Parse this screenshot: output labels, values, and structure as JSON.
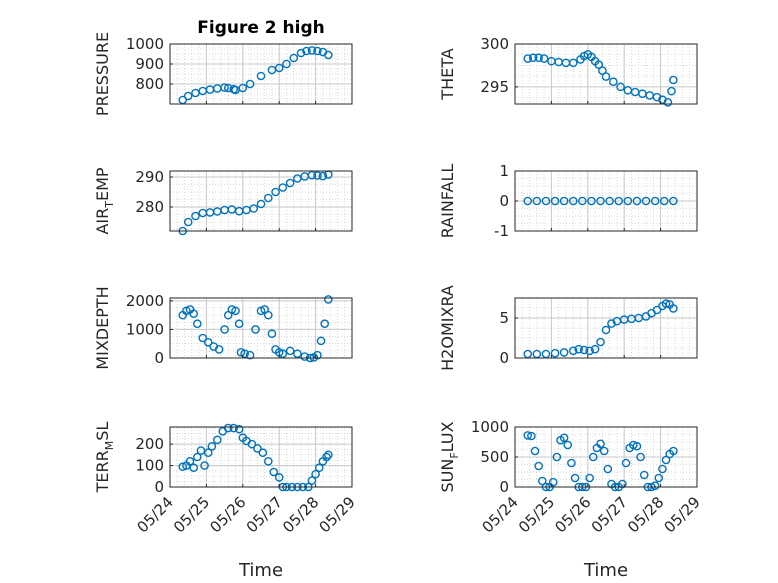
{
  "figure_title": "Figure 2 high",
  "x_axis_label": "Time",
  "x_tick_labels": [
    "05/24",
    "05/25",
    "05/26",
    "05/27",
    "05/28",
    "05/29"
  ],
  "colors": {
    "marker": "#0072bd",
    "grid": "#d0d0d0",
    "axis": "#262626"
  },
  "chart_data": [
    {
      "id": "pressure",
      "type": "scatter",
      "title": "Figure 2 high",
      "ylabel": "PRESSURE",
      "xlabel": "",
      "xlim": [
        0,
        5
      ],
      "ylim": [
        700,
        1000
      ],
      "yticks": [
        800,
        900,
        1000
      ],
      "grid": true,
      "x": [
        0.35,
        0.5,
        0.7,
        0.9,
        1.1,
        1.3,
        1.5,
        1.6,
        1.75,
        1.8,
        2.0,
        2.2,
        2.5,
        2.8,
        3.0,
        3.2,
        3.4,
        3.6,
        3.75,
        3.9,
        4.05,
        4.2,
        4.35
      ],
      "y": [
        720,
        740,
        755,
        765,
        772,
        778,
        782,
        780,
        774,
        770,
        780,
        800,
        840,
        870,
        880,
        900,
        930,
        955,
        965,
        968,
        965,
        960,
        945
      ]
    },
    {
      "id": "theta",
      "type": "scatter",
      "title": "",
      "ylabel": "THETA",
      "xlabel": "",
      "xlim": [
        0,
        5
      ],
      "ylim": [
        293,
        300
      ],
      "yticks": [
        295,
        300
      ],
      "grid": true,
      "x": [
        0.35,
        0.5,
        0.65,
        0.8,
        1.0,
        1.2,
        1.4,
        1.6,
        1.8,
        1.9,
        2.0,
        2.1,
        2.2,
        2.3,
        2.4,
        2.5,
        2.7,
        2.9,
        3.1,
        3.3,
        3.5,
        3.7,
        3.9,
        4.05,
        4.2,
        4.3,
        4.35
      ],
      "y": [
        298.3,
        298.4,
        298.4,
        298.3,
        298.0,
        297.9,
        297.8,
        297.8,
        298.2,
        298.6,
        298.8,
        298.5,
        298.0,
        297.6,
        296.9,
        296.2,
        295.6,
        295.0,
        294.6,
        294.4,
        294.2,
        294.0,
        293.8,
        293.5,
        293.2,
        294.5,
        295.8
      ]
    },
    {
      "id": "air_temp",
      "type": "scatter",
      "title": "",
      "ylabel": "AIR_TEMP",
      "xlabel": "",
      "xlim": [
        0,
        5
      ],
      "ylim": [
        272,
        292
      ],
      "yticks": [
        280,
        290
      ],
      "grid": true,
      "x": [
        0.35,
        0.5,
        0.7,
        0.9,
        1.1,
        1.3,
        1.5,
        1.7,
        1.9,
        2.1,
        2.3,
        2.5,
        2.7,
        2.9,
        3.1,
        3.3,
        3.5,
        3.7,
        3.9,
        4.05,
        4.2,
        4.35
      ],
      "y": [
        272,
        275,
        277,
        278,
        278.2,
        278.5,
        279,
        279.2,
        278.6,
        279,
        279.5,
        281,
        283,
        285,
        286.5,
        288,
        289.5,
        290.2,
        290.6,
        290.5,
        290.3,
        290.8
      ]
    },
    {
      "id": "rainfall",
      "type": "scatter",
      "title": "",
      "ylabel": "RAINFALL",
      "xlabel": "",
      "xlim": [
        0,
        5
      ],
      "ylim": [
        -1,
        1
      ],
      "yticks": [
        -1,
        0,
        1
      ],
      "grid": true,
      "x": [
        0.35,
        0.6,
        0.85,
        1.1,
        1.35,
        1.6,
        1.85,
        2.1,
        2.35,
        2.6,
        2.85,
        3.1,
        3.35,
        3.6,
        3.85,
        4.1,
        4.35
      ],
      "y": [
        0,
        0,
        0,
        0,
        0,
        0,
        0,
        0,
        0,
        0,
        0,
        0,
        0,
        0,
        0,
        0,
        0
      ]
    },
    {
      "id": "mixdepth",
      "type": "scatter",
      "title": "",
      "ylabel": "MIXDEPTH",
      "xlabel": "",
      "xlim": [
        0,
        5
      ],
      "ylim": [
        0,
        2100
      ],
      "yticks": [
        0,
        1000,
        2000
      ],
      "grid": true,
      "x": [
        0.35,
        0.45,
        0.55,
        0.65,
        0.75,
        0.9,
        1.05,
        1.2,
        1.35,
        1.5,
        1.6,
        1.7,
        1.8,
        1.9,
        1.95,
        2.05,
        2.2,
        2.35,
        2.5,
        2.6,
        2.7,
        2.8,
        2.9,
        3.0,
        3.1,
        3.3,
        3.5,
        3.7,
        3.85,
        3.95,
        4.05,
        4.15,
        4.25,
        4.35
      ],
      "y": [
        1500,
        1650,
        1700,
        1550,
        1200,
        700,
        550,
        400,
        300,
        1000,
        1500,
        1700,
        1650,
        1200,
        200,
        150,
        100,
        1000,
        1650,
        1700,
        1500,
        850,
        300,
        200,
        150,
        250,
        150,
        50,
        0,
        20,
        100,
        600,
        1200,
        2050
      ]
    },
    {
      "id": "h2omixra",
      "type": "scatter",
      "title": "",
      "ylabel": "H2OMIXRA",
      "xlabel": "",
      "xlim": [
        0,
        5
      ],
      "ylim": [
        0,
        7.5
      ],
      "yticks": [
        0,
        5
      ],
      "grid": true,
      "x": [
        0.35,
        0.6,
        0.85,
        1.1,
        1.35,
        1.6,
        1.75,
        1.9,
        2.05,
        2.2,
        2.35,
        2.5,
        2.65,
        2.8,
        3.0,
        3.2,
        3.4,
        3.6,
        3.75,
        3.9,
        4.05,
        4.15,
        4.25,
        4.35
      ],
      "y": [
        0.5,
        0.5,
        0.5,
        0.6,
        0.7,
        0.9,
        1.1,
        1.0,
        0.9,
        1.1,
        2.0,
        3.5,
        4.3,
        4.6,
        4.8,
        4.9,
        5.0,
        5.2,
        5.6,
        6.0,
        6.5,
        6.8,
        6.7,
        6.2
      ]
    },
    {
      "id": "terr_msl",
      "type": "scatter",
      "title": "",
      "ylabel": "TERR_MSL",
      "xlabel": "",
      "xlim": [
        0,
        5
      ],
      "ylim": [
        0,
        280
      ],
      "yticks": [
        0,
        100,
        200
      ],
      "grid": true,
      "x": [
        0.35,
        0.45,
        0.55,
        0.65,
        0.75,
        0.85,
        0.95,
        1.05,
        1.15,
        1.3,
        1.45,
        1.6,
        1.75,
        1.9,
        2.0,
        2.1,
        2.25,
        2.4,
        2.55,
        2.7,
        2.85,
        3.0,
        3.1,
        3.2,
        3.35,
        3.5,
        3.65,
        3.8,
        3.9,
        4.0,
        4.1,
        4.2,
        4.3,
        4.35
      ],
      "y": [
        95,
        100,
        120,
        90,
        140,
        170,
        100,
        160,
        190,
        220,
        260,
        275,
        275,
        270,
        230,
        215,
        200,
        180,
        160,
        120,
        70,
        45,
        0,
        0,
        0,
        0,
        0,
        0,
        30,
        60,
        90,
        120,
        140,
        150
      ]
    },
    {
      "id": "sun_flux",
      "type": "scatter",
      "title": "",
      "ylabel": "SUN_FLUX",
      "xlabel": "",
      "xlim": [
        0,
        5
      ],
      "ylim": [
        0,
        1000
      ],
      "yticks": [
        0,
        500,
        1000
      ],
      "grid": true,
      "x": [
        0.35,
        0.45,
        0.55,
        0.65,
        0.75,
        0.85,
        0.95,
        1.05,
        1.15,
        1.25,
        1.35,
        1.45,
        1.55,
        1.65,
        1.75,
        1.85,
        1.95,
        2.05,
        2.15,
        2.25,
        2.35,
        2.45,
        2.55,
        2.65,
        2.75,
        2.85,
        2.95,
        3.05,
        3.15,
        3.25,
        3.35,
        3.45,
        3.55,
        3.65,
        3.75,
        3.85,
        3.95,
        4.05,
        4.15,
        4.25,
        4.35
      ],
      "y": [
        860,
        850,
        600,
        350,
        100,
        0,
        0,
        80,
        500,
        780,
        820,
        700,
        400,
        150,
        0,
        0,
        0,
        150,
        500,
        650,
        720,
        600,
        300,
        50,
        0,
        0,
        50,
        400,
        650,
        700,
        680,
        500,
        200,
        0,
        0,
        20,
        150,
        300,
        450,
        550,
        600
      ]
    }
  ]
}
